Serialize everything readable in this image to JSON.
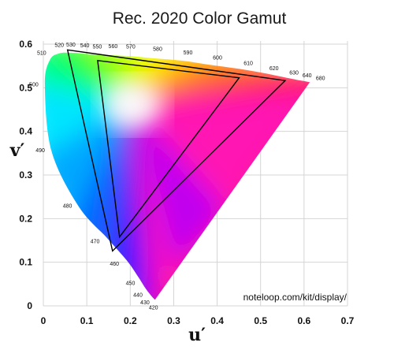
{
  "chart_data": {
    "type": "scatter",
    "title": "Rec. 2020 Color Gamut",
    "xlabel": "u′",
    "ylabel": "v′",
    "xlim": [
      0,
      0.7
    ],
    "ylim": [
      0,
      0.6
    ],
    "x_ticks": [
      "0",
      "0.1",
      "0.2",
      "0.3",
      "0.4",
      "0.5",
      "0.6",
      "0.7"
    ],
    "y_ticks": [
      "0",
      "0.1",
      "0.2",
      "0.3",
      "0.4",
      "0.5",
      "0.6"
    ],
    "grid": true,
    "spectral_locus": [
      {
        "label": "420",
        "u": 0.2569,
        "v": 0.0139
      },
      {
        "label": "430",
        "u": 0.2483,
        "v": 0.0231
      },
      {
        "label": "440",
        "u": 0.2357,
        "v": 0.0393
      },
      {
        "label": "450",
        "u": 0.2185,
        "v": 0.0661
      },
      {
        "label": "460",
        "u": 0.1926,
        "v": 0.1034
      },
      {
        "label": "470",
        "u": 0.1479,
        "v": 0.1541
      },
      {
        "label": "480",
        "u": 0.0808,
        "v": 0.2285
      },
      {
        "label": "490",
        "u": 0.0183,
        "v": 0.3564
      },
      {
        "label": "500",
        "u": 0.0035,
        "v": 0.5071
      },
      {
        "label": "510",
        "u": 0.015,
        "v": 0.5637
      },
      {
        "label": "520",
        "u": 0.0367,
        "v": 0.5789
      },
      {
        "label": "530",
        "u": 0.0632,
        "v": 0.5803
      },
      {
        "label": "540",
        "u": 0.0917,
        "v": 0.5784
      },
      {
        "label": "550",
        "u": 0.1204,
        "v": 0.576
      },
      {
        "label": "560",
        "u": 0.1566,
        "v": 0.5746
      },
      {
        "label": "570",
        "u": 0.2009,
        "v": 0.5723
      },
      {
        "label": "580",
        "u": 0.255,
        "v": 0.5675
      },
      {
        "label": "590",
        "u": 0.3179,
        "v": 0.5622
      },
      {
        "label": "600",
        "u": 0.3814,
        "v": 0.5529
      },
      {
        "label": "610",
        "u": 0.4497,
        "v": 0.5434
      },
      {
        "label": "620",
        "u": 0.5076,
        "v": 0.5335
      },
      {
        "label": "630",
        "u": 0.5529,
        "v": 0.5243
      },
      {
        "label": "640",
        "u": 0.5828,
        "v": 0.5184
      },
      {
        "label": "680",
        "u": 0.6133,
        "v": 0.5128
      }
    ],
    "gamuts": [
      {
        "vertices": [
          [
            0.0556,
            0.5868
          ],
          [
            0.5566,
            0.5165
          ],
          [
            0.1593,
            0.1258
          ]
        ]
      },
      {
        "vertices": [
          [
            0.125,
            0.5625
          ],
          [
            0.4507,
            0.5229
          ],
          [
            0.1754,
            0.1579
          ]
        ]
      }
    ],
    "annotation": "noteloop.com/kit/display/"
  },
  "colors": {
    "gridline": "#d4d4d4",
    "gamut_outline": "#000000",
    "red_corner": "#ff1744",
    "green_corner": "#33e633",
    "blue_corner": "#4422ff",
    "white_point": "#ffffff"
  }
}
